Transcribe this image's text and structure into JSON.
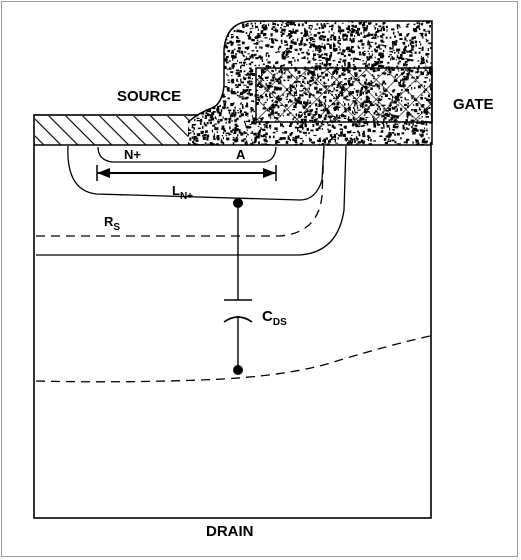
{
  "labels": {
    "source": "SOURCE",
    "gate": "GATE",
    "drain": "DRAIN",
    "n_plus": "N+",
    "a": "A",
    "l_main": "L",
    "l_sub": "N+",
    "rs_main": "R",
    "rs_sub": "S",
    "cds_main": "C",
    "cds_sub": "DS"
  },
  "colors": {
    "line": "#000000",
    "frame": "#9a9a9a",
    "background": "#ffffff"
  }
}
